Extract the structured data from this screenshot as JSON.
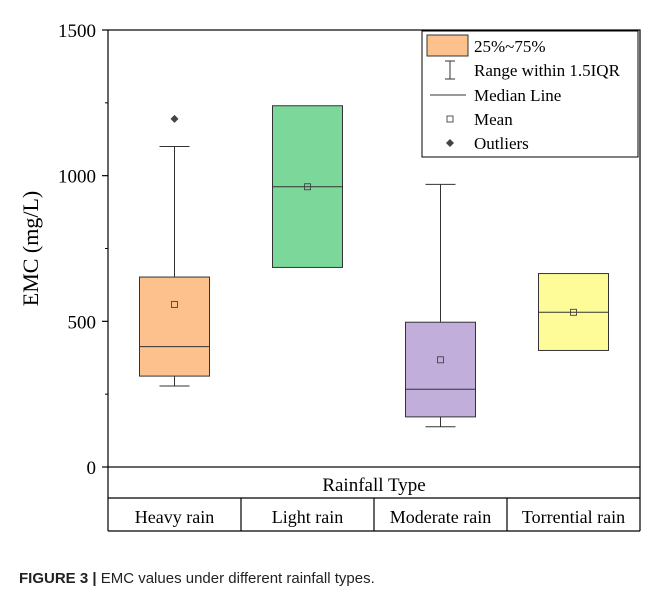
{
  "figure": {
    "caption_label": "FIGURE 3 |",
    "caption_text": " EMC values under different rainfall types."
  },
  "chart_data": {
    "type": "box",
    "ylabel": "EMC (mg/L)",
    "xlabel": "Rainfall Type",
    "ylim": [
      0,
      1500
    ],
    "yticks": [
      0,
      500,
      1000,
      1500
    ],
    "grid": false,
    "legend_position": "top-right",
    "legend": {
      "box": "25%~75%",
      "whisker": "Range within 1.5IQR",
      "median": "Median Line",
      "mean": "Mean",
      "outlier": "Outliers"
    },
    "categories": [
      "Heavy rain",
      "Light rain",
      "Moderate rain",
      "Torrential rain"
    ],
    "boxes": [
      {
        "category": "Heavy rain",
        "whisker_low": 278,
        "q1": 312,
        "median": 413,
        "q3": 652,
        "whisker_high": 1100,
        "mean": 558,
        "outliers": [
          1195
        ],
        "color": "#FDC18E"
      },
      {
        "category": "Light rain",
        "whisker_low": 685,
        "q1": 685,
        "median": 962,
        "q3": 1240,
        "whisker_high": 1240,
        "mean": 962,
        "outliers": [],
        "color": "#7BD89A"
      },
      {
        "category": "Moderate rain",
        "whisker_low": 138,
        "q1": 172,
        "median": 267,
        "q3": 497,
        "whisker_high": 970,
        "mean": 368,
        "outliers": [],
        "color": "#C2AEDA"
      },
      {
        "category": "Torrential rain",
        "whisker_low": 400,
        "q1": 400,
        "median": 531,
        "q3": 664,
        "whisker_high": 664,
        "mean": 531,
        "outliers": [],
        "color": "#FEFC98"
      }
    ]
  }
}
